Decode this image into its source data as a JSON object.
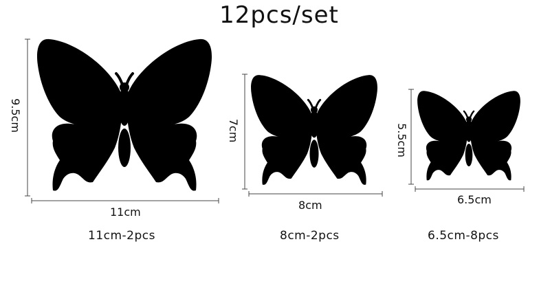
{
  "title": "12pcs/set",
  "items": [
    {
      "width_label": "11cm",
      "height_label": "9.5cm",
      "caption": "11cm-2pcs"
    },
    {
      "width_label": "8cm",
      "height_label": "7cm",
      "caption": "8cm-2pcs"
    },
    {
      "width_label": "6.5cm",
      "height_label": "5.5cm",
      "caption": "6.5cm-8pcs"
    }
  ],
  "colors": {
    "silhouette": "#000000",
    "text": "#111111",
    "lines": "#444444"
  }
}
